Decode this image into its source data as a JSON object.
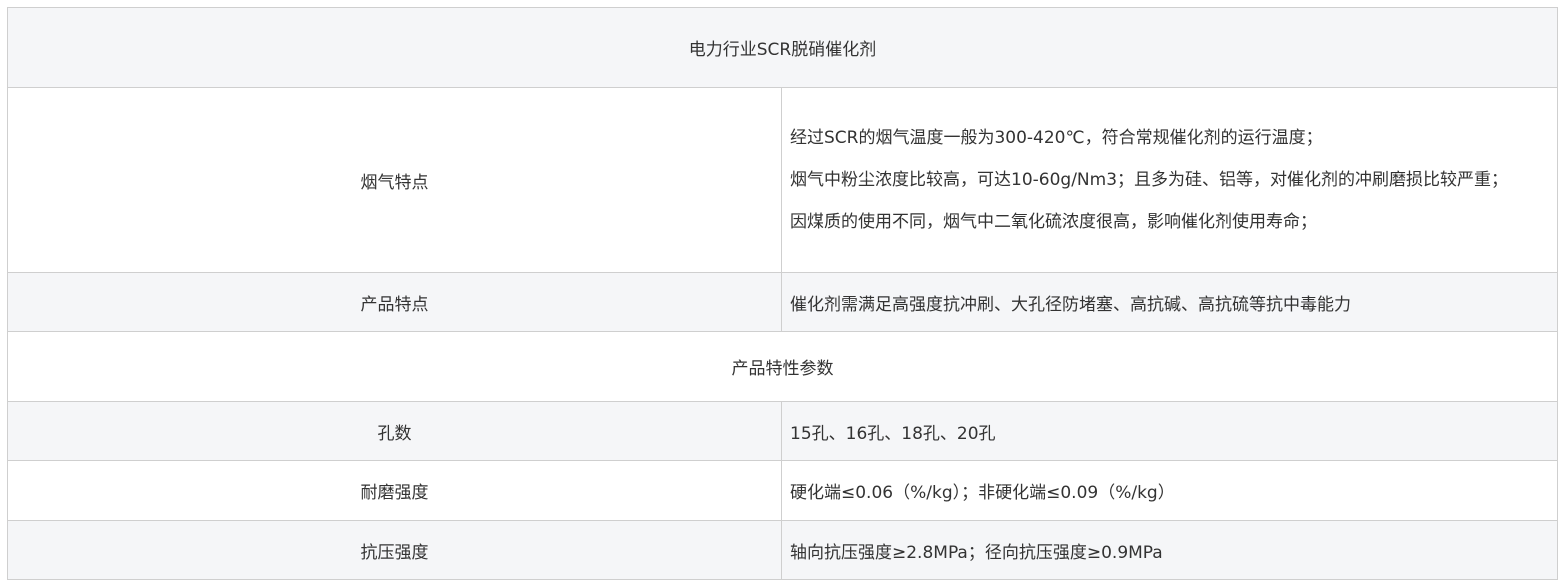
{
  "title": "电力行业SCR脱硝催化剂",
  "flue_gas": {
    "label": "烟气特点",
    "lines": [
      "经过SCR的烟气温度一般为300-420℃，符合常规催化剂的运行温度；",
      "烟气中粉尘浓度比较高，可达10-60g/Nm3；且多为硅、铝等，对催化剂的冲刷磨损比较严重；",
      "因煤质的使用不同，烟气中二氧化硫浓度很高，影响催化剂使用寿命；"
    ]
  },
  "product": {
    "label": "产品特点",
    "value": "催化剂需满足高强度抗冲刷、大孔径防堵塞、高抗碱、高抗硫等抗中毒能力"
  },
  "params_title": "产品特性参数",
  "params": [
    {
      "label": "孔数",
      "value": "15孔、16孔、18孔、20孔"
    },
    {
      "label": "耐磨强度",
      "value": "硬化端≤0.06（%/kg）；非硬化端≤0.09（%/kg）"
    },
    {
      "label": "抗压强度",
      "value": "轴向抗压强度≥2.8MPa；径向抗压强度≥0.9MPa"
    }
  ]
}
